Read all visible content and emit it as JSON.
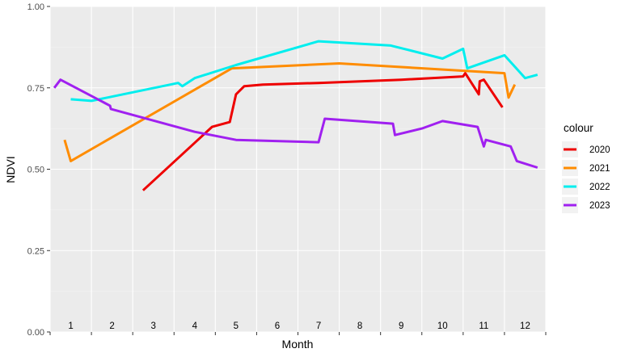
{
  "chart_data": {
    "type": "line",
    "title": "",
    "xlabel": "Month",
    "ylabel": "NDVI",
    "ylim": [
      0.0,
      1.0
    ],
    "xlim": [
      0.5,
      12.5
    ],
    "y_ticks": [
      {
        "value": 0.0,
        "label": "0.00"
      },
      {
        "value": 0.25,
        "label": "0.25"
      },
      {
        "value": 0.5,
        "label": "0.50"
      },
      {
        "value": 0.75,
        "label": "0.75"
      },
      {
        "value": 1.0,
        "label": "1.00"
      }
    ],
    "month_labels": [
      "1",
      "2",
      "3",
      "4",
      "5",
      "6",
      "7",
      "8",
      "9",
      "10",
      "11",
      "12"
    ],
    "legend": {
      "title": "colour",
      "position": "right"
    },
    "grid": true,
    "series": [
      {
        "name": "2020",
        "color": "#ee0000",
        "x": [
          2.75,
          4.42,
          4.85,
          5.0,
          5.2,
          5.65,
          7.0,
          9.0,
          10.5,
          10.55,
          10.88,
          10.9,
          11.0,
          11.45
        ],
        "y": [
          0.435,
          0.63,
          0.645,
          0.73,
          0.755,
          0.76,
          0.765,
          0.775,
          0.785,
          0.795,
          0.73,
          0.77,
          0.775,
          0.69
        ]
      },
      {
        "name": "2021",
        "color": "#ff8c00",
        "x": [
          0.85,
          1.0,
          4.9,
          7.5,
          11.5,
          11.6,
          11.75
        ],
        "y": [
          0.59,
          0.525,
          0.81,
          0.825,
          0.795,
          0.72,
          0.76
        ]
      },
      {
        "name": "2022",
        "color": "#00eeee",
        "x": [
          1.0,
          1.5,
          3.6,
          3.7,
          4.0,
          5.0,
          7.0,
          8.75,
          10.0,
          10.5,
          10.6,
          11.5,
          12.0,
          12.3
        ],
        "y": [
          0.715,
          0.71,
          0.765,
          0.755,
          0.78,
          0.82,
          0.893,
          0.88,
          0.84,
          0.87,
          0.81,
          0.85,
          0.78,
          0.79
        ]
      },
      {
        "name": "2023",
        "color": "#a020f0",
        "x": [
          0.6,
          0.75,
          1.95,
          1.97,
          4.0,
          5.0,
          7.0,
          7.15,
          8.8,
          8.85,
          9.5,
          10.0,
          10.85,
          11.0,
          11.05,
          11.65,
          11.8,
          12.3
        ],
        "y": [
          0.75,
          0.775,
          0.695,
          0.685,
          0.615,
          0.59,
          0.583,
          0.655,
          0.64,
          0.605,
          0.625,
          0.648,
          0.63,
          0.57,
          0.59,
          0.57,
          0.525,
          0.505
        ]
      }
    ]
  }
}
